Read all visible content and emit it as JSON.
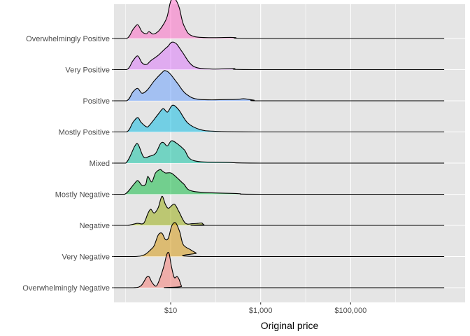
{
  "chart_data": {
    "type": "ridgeline",
    "xlabel": "Original price",
    "ylabel": "",
    "x_scale": "log10",
    "x_ticks": [
      {
        "value": 10,
        "label": "$10"
      },
      {
        "value": 1000,
        "label": "$1,000"
      },
      {
        "value": 100000,
        "label": "$100,000"
      }
    ],
    "xlim": [
      0.55,
      35000000
    ],
    "grid": true,
    "legend": "none",
    "background_color": "#e5e5e5",
    "grid_color": "#ffffff",
    "series": [
      {
        "name": "Overwhelmingly Negative",
        "color": "#F8766D",
        "x_range": [
          0.5,
          12000000
        ],
        "density": [
          [
            0.5,
            0
          ],
          [
            1.5,
            0
          ],
          [
            2.2,
            0.06
          ],
          [
            2.9,
            0.3
          ],
          [
            3.3,
            0.32
          ],
          [
            3.9,
            0.14
          ],
          [
            4.8,
            0.05
          ],
          [
            5.8,
            0.28
          ],
          [
            7.1,
            0.64
          ],
          [
            8.2,
            0.97
          ],
          [
            9.2,
            1.0
          ],
          [
            10.4,
            0.62
          ],
          [
            12.0,
            0.3
          ],
          [
            13.8,
            0.33
          ],
          [
            15.4,
            0.24
          ],
          [
            17.5,
            0.04
          ],
          [
            20,
            0
          ],
          [
            12000000,
            0
          ]
        ]
      },
      {
        "name": "Very Negative",
        "color": "#D39200",
        "x_range": [
          0.5,
          12000000
        ],
        "density": [
          [
            0.5,
            0
          ],
          [
            1.6,
            0
          ],
          [
            2.6,
            0.05
          ],
          [
            3.6,
            0.2
          ],
          [
            4.3,
            0.32
          ],
          [
            5.3,
            0.63
          ],
          [
            6.4,
            0.68
          ],
          [
            7.6,
            0.5
          ],
          [
            8.9,
            0.54
          ],
          [
            10.6,
            0.9
          ],
          [
            12.9,
            0.98
          ],
          [
            15.9,
            0.72
          ],
          [
            19,
            0.35
          ],
          [
            27.5,
            0.2
          ],
          [
            37,
            0.1
          ],
          [
            50,
            0
          ],
          [
            12000000,
            0
          ]
        ]
      },
      {
        "name": "Negative",
        "color": "#93AA00",
        "x_range": [
          0.5,
          12000000
        ],
        "density": [
          [
            0.5,
            0
          ],
          [
            1.1,
            0
          ],
          [
            1.8,
            0.06
          ],
          [
            2.5,
            0.06
          ],
          [
            3.1,
            0.34
          ],
          [
            3.6,
            0.47
          ],
          [
            4.3,
            0.36
          ],
          [
            5.3,
            0.52
          ],
          [
            6.4,
            0.85
          ],
          [
            7.6,
            0.62
          ],
          [
            8.9,
            0.5
          ],
          [
            12.0,
            0.62
          ],
          [
            15,
            0.42
          ],
          [
            21,
            0.07
          ],
          [
            30,
            0.05
          ],
          [
            40,
            0.06
          ],
          [
            49,
            0.07
          ],
          [
            55,
            0.02
          ],
          [
            75,
            0
          ],
          [
            12000000,
            0
          ]
        ]
      },
      {
        "name": "Mostly Negative",
        "color": "#00BA38",
        "x_range": [
          0.5,
          12000000
        ],
        "density": [
          [
            0.5,
            0
          ],
          [
            0.95,
            0
          ],
          [
            1.5,
            0.28
          ],
          [
            1.85,
            0.4
          ],
          [
            2.3,
            0.26
          ],
          [
            2.8,
            0.3
          ],
          [
            3.1,
            0.52
          ],
          [
            3.8,
            0.36
          ],
          [
            4.6,
            0.62
          ],
          [
            5.8,
            0.72
          ],
          [
            6.5,
            0.68
          ],
          [
            7.7,
            0.62
          ],
          [
            10.2,
            0.62
          ],
          [
            13.9,
            0.48
          ],
          [
            19.5,
            0.3
          ],
          [
            33,
            0.08
          ],
          [
            300,
            0.02
          ],
          [
            1000,
            0
          ],
          [
            12000000,
            0
          ]
        ]
      },
      {
        "name": "Mixed",
        "color": "#00C19F",
        "x_range": [
          0.5,
          12000000
        ],
        "density": [
          [
            0.5,
            0
          ],
          [
            1.0,
            0
          ],
          [
            1.6,
            0.5
          ],
          [
            1.9,
            0.54
          ],
          [
            2.5,
            0.18
          ],
          [
            3.4,
            0.2
          ],
          [
            4.6,
            0.28
          ],
          [
            5.9,
            0.56
          ],
          [
            6.9,
            0.6
          ],
          [
            8.4,
            0.5
          ],
          [
            10.4,
            0.65
          ],
          [
            13.5,
            0.58
          ],
          [
            20,
            0.39
          ],
          [
            33,
            0.07
          ],
          [
            200,
            0.02
          ],
          [
            1000,
            0
          ],
          [
            12000000,
            0
          ]
        ]
      },
      {
        "name": "Mostly Positive",
        "color": "#00B9E3",
        "x_range": [
          0.5,
          12000000
        ],
        "density": [
          [
            0.5,
            0
          ],
          [
            1.05,
            0
          ],
          [
            1.45,
            0.28
          ],
          [
            1.85,
            0.42
          ],
          [
            2.2,
            0.28
          ],
          [
            2.9,
            0.15
          ],
          [
            3.4,
            0.2
          ],
          [
            5.3,
            0.52
          ],
          [
            6.8,
            0.68
          ],
          [
            8.5,
            0.58
          ],
          [
            11.0,
            0.78
          ],
          [
            15,
            0.65
          ],
          [
            24,
            0.26
          ],
          [
            45,
            0.07
          ],
          [
            100,
            0.02
          ],
          [
            1000,
            0
          ],
          [
            12000000,
            0
          ]
        ]
      },
      {
        "name": "Positive",
        "color": "#619CFF",
        "x_range": [
          0.5,
          12000000
        ],
        "density": [
          [
            0.5,
            0
          ],
          [
            1.05,
            0
          ],
          [
            1.45,
            0.26
          ],
          [
            1.85,
            0.36
          ],
          [
            2.3,
            0.22
          ],
          [
            3.0,
            0.31
          ],
          [
            4.3,
            0.58
          ],
          [
            6.4,
            0.82
          ],
          [
            7.5,
            0.88
          ],
          [
            9.5,
            0.8
          ],
          [
            14,
            0.52
          ],
          [
            22,
            0.2
          ],
          [
            44,
            0.04
          ],
          [
            270,
            0.04
          ],
          [
            420,
            0.06
          ],
          [
            700,
            0.02
          ],
          [
            1500,
            0
          ],
          [
            12000000,
            0
          ]
        ]
      },
      {
        "name": "Very Positive",
        "color": "#DB72FB",
        "x_range": [
          0.5,
          12000000
        ],
        "density": [
          [
            0.5,
            0
          ],
          [
            1.05,
            0
          ],
          [
            1.45,
            0.26
          ],
          [
            1.85,
            0.4
          ],
          [
            2.3,
            0.2
          ],
          [
            2.9,
            0.15
          ],
          [
            3.6,
            0.26
          ],
          [
            5.3,
            0.42
          ],
          [
            7.4,
            0.6
          ],
          [
            8.7,
            0.68
          ],
          [
            10.6,
            0.8
          ],
          [
            13.5,
            0.75
          ],
          [
            18,
            0.52
          ],
          [
            32,
            0.1
          ],
          [
            80,
            0.02
          ],
          [
            250,
            0.03
          ],
          [
            700,
            0
          ],
          [
            12000000,
            0
          ]
        ]
      },
      {
        "name": "Overwhelmingly Positive",
        "color": "#FF61C3",
        "x_range": [
          0.5,
          12000000
        ],
        "density": [
          [
            0.5,
            0
          ],
          [
            1.05,
            0
          ],
          [
            1.45,
            0.26
          ],
          [
            1.85,
            0.4
          ],
          [
            2.3,
            0.2
          ],
          [
            2.9,
            0.14
          ],
          [
            3.3,
            0.2
          ],
          [
            4.1,
            0.13
          ],
          [
            5.4,
            0.22
          ],
          [
            7.2,
            0.45
          ],
          [
            8.4,
            0.65
          ],
          [
            10.1,
            1.1
          ],
          [
            12.5,
            1.15
          ],
          [
            15.5,
            0.9
          ],
          [
            20,
            0.36
          ],
          [
            35,
            0.05
          ],
          [
            250,
            0.03
          ],
          [
            700,
            0
          ],
          [
            12000000,
            0
          ]
        ]
      }
    ]
  }
}
